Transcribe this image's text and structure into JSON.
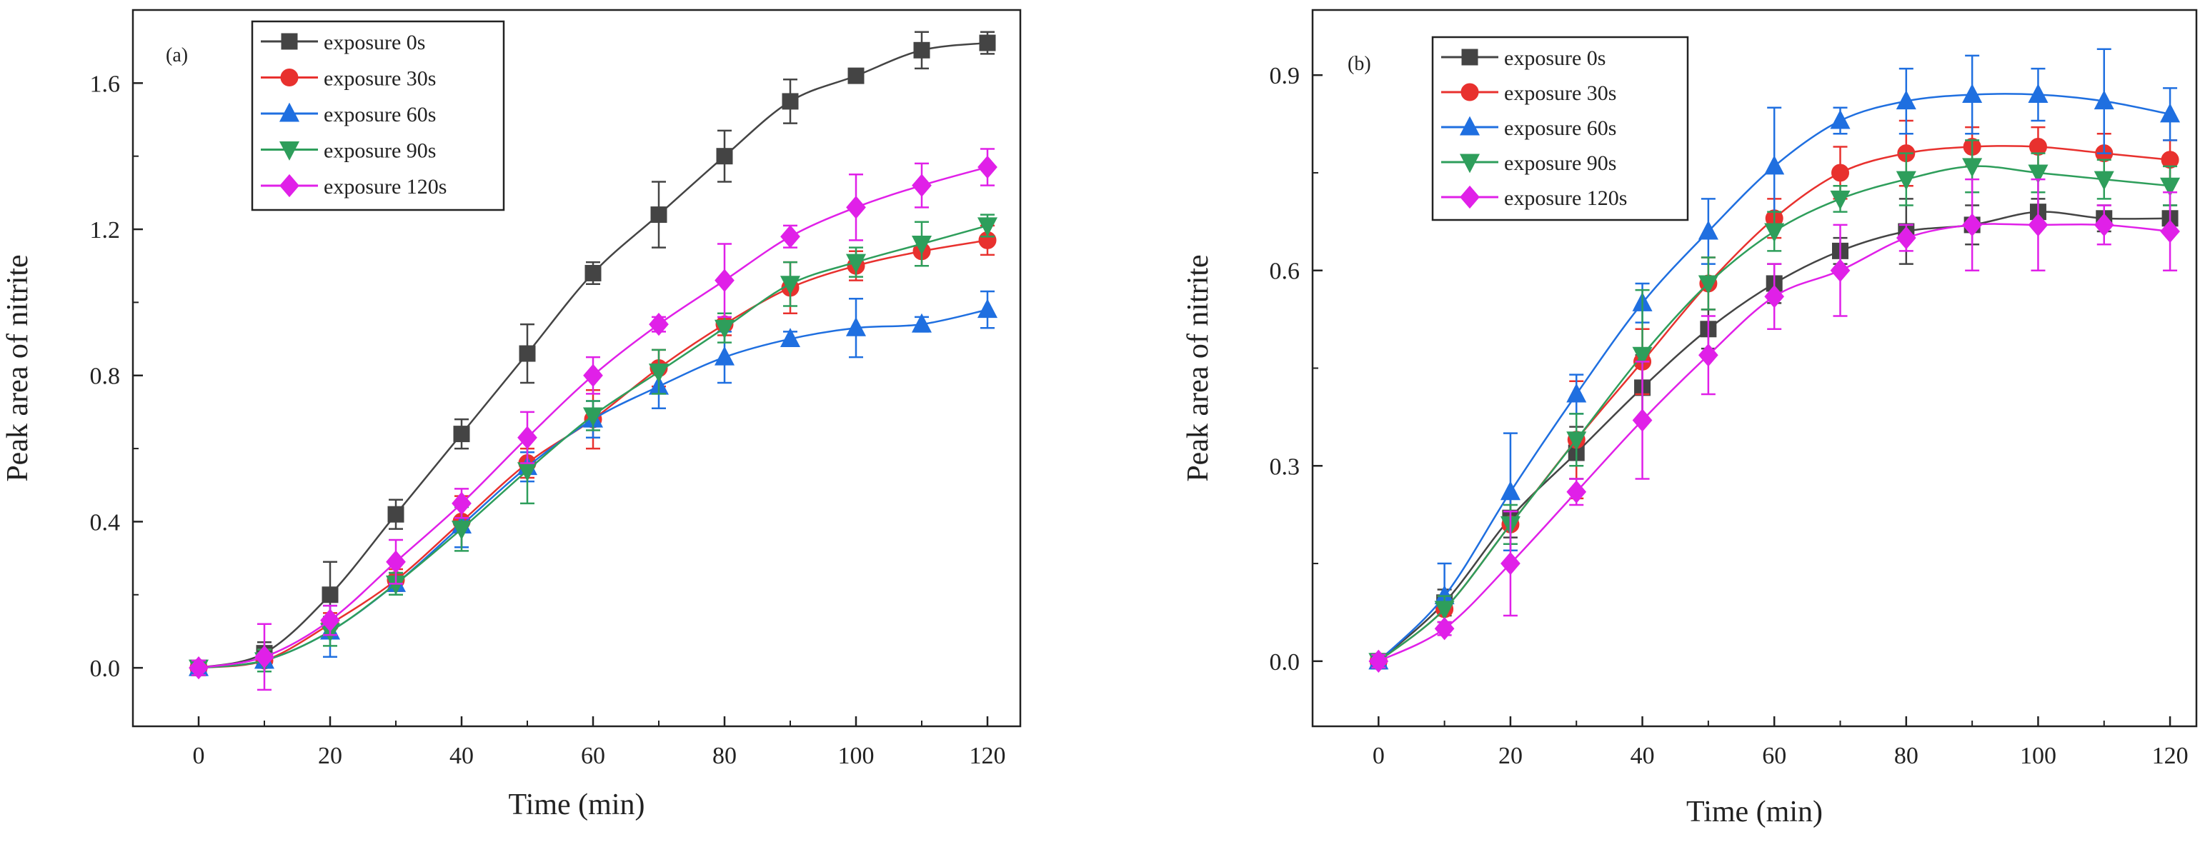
{
  "chart_data": [
    {
      "type": "line",
      "panel_label": "(a)",
      "xlabel": "Time (min)",
      "ylabel": "Peak area of nitrite",
      "xlim": [
        -10,
        125
      ],
      "ylim": [
        -0.16,
        1.8
      ],
      "x_ticks": [
        0,
        20,
        40,
        60,
        80,
        100,
        120
      ],
      "y_ticks": [
        0.0,
        0.4,
        0.8,
        1.2,
        1.6
      ],
      "x_tick_labels": [
        "0",
        "20",
        "40",
        "60",
        "80",
        "100",
        "120"
      ],
      "y_tick_labels": [
        "0.0",
        "0.4",
        "0.8",
        "1.2",
        "1.6"
      ],
      "x": [
        0,
        10,
        20,
        30,
        40,
        50,
        60,
        70,
        80,
        90,
        100,
        110,
        120
      ],
      "legend_position": "top-left",
      "series": [
        {
          "name": "exposure 0s",
          "color": "#444444",
          "marker": "square",
          "values": [
            0.0,
            0.04,
            0.2,
            0.42,
            0.64,
            0.86,
            1.08,
            1.24,
            1.4,
            1.55,
            1.62,
            1.69,
            1.71
          ],
          "errors": [
            0.02,
            0.03,
            0.09,
            0.04,
            0.04,
            0.08,
            0.03,
            0.09,
            0.07,
            0.06,
            0.01,
            0.05,
            0.03
          ]
        },
        {
          "name": "exposure 30s",
          "color": "#e8312e",
          "marker": "circle",
          "values": [
            0.0,
            0.02,
            0.12,
            0.24,
            0.4,
            0.56,
            0.68,
            0.82,
            0.94,
            1.04,
            1.1,
            1.14,
            1.17
          ],
          "errors": [
            0.02,
            0.03,
            0.03,
            0.03,
            0.07,
            0.04,
            0.08,
            0.05,
            0.03,
            0.07,
            0.04,
            0.04,
            0.04
          ]
        },
        {
          "name": "exposure 60s",
          "color": "#1f6fe0",
          "marker": "triangle-up",
          "values": [
            0.0,
            0.02,
            0.1,
            0.23,
            0.39,
            0.55,
            0.68,
            0.77,
            0.85,
            0.9,
            0.93,
            0.94,
            0.98
          ],
          "errors": [
            0.02,
            0.02,
            0.07,
            0.03,
            0.06,
            0.04,
            0.05,
            0.06,
            0.07,
            0.02,
            0.08,
            0.02,
            0.05
          ]
        },
        {
          "name": "exposure 90s",
          "color": "#2e9e5b",
          "marker": "triangle-down",
          "values": [
            0.0,
            0.02,
            0.1,
            0.23,
            0.38,
            0.54,
            0.69,
            0.81,
            0.93,
            1.05,
            1.11,
            1.16,
            1.21
          ],
          "errors": [
            0.02,
            0.03,
            0.04,
            0.03,
            0.06,
            0.09,
            0.04,
            0.06,
            0.04,
            0.06,
            0.04,
            0.06,
            0.03
          ]
        },
        {
          "name": "exposure 120s",
          "color": "#e020e8",
          "marker": "diamond",
          "values": [
            0.0,
            0.03,
            0.13,
            0.29,
            0.45,
            0.63,
            0.8,
            0.94,
            1.06,
            1.18,
            1.26,
            1.32,
            1.37
          ],
          "errors": [
            0.02,
            0.09,
            0.04,
            0.06,
            0.04,
            0.07,
            0.05,
            0.02,
            0.1,
            0.03,
            0.09,
            0.06,
            0.05
          ]
        }
      ]
    },
    {
      "type": "line",
      "panel_label": "(b)",
      "xlabel": "Time (min)",
      "ylabel": "Peak area of nitrite",
      "xlim": [
        -10,
        124
      ],
      "ylim": [
        -0.1,
        1.0
      ],
      "x_ticks": [
        0,
        20,
        40,
        60,
        80,
        100,
        120
      ],
      "y_ticks": [
        0.0,
        0.3,
        0.6,
        0.9
      ],
      "x_tick_labels": [
        "0",
        "20",
        "40",
        "60",
        "80",
        "100",
        "120"
      ],
      "y_tick_labels": [
        "0.0",
        "0.3",
        "0.6",
        "0.9"
      ],
      "x": [
        0,
        10,
        20,
        30,
        40,
        50,
        60,
        70,
        80,
        90,
        100,
        110,
        120
      ],
      "legend_position": "top-left",
      "series": [
        {
          "name": "exposure 0s",
          "color": "#444444",
          "marker": "square",
          "values": [
            0.0,
            0.09,
            0.22,
            0.32,
            0.42,
            0.51,
            0.58,
            0.63,
            0.66,
            0.67,
            0.69,
            0.68,
            0.68
          ],
          "errors": [
            0.01,
            0.02,
            0.03,
            0.04,
            0.05,
            0.03,
            0.03,
            0.02,
            0.05,
            0.03,
            0.02,
            0.02,
            0.02
          ]
        },
        {
          "name": "exposure 30s",
          "color": "#e8312e",
          "marker": "circle",
          "values": [
            0.0,
            0.08,
            0.21,
            0.34,
            0.46,
            0.58,
            0.68,
            0.75,
            0.78,
            0.79,
            0.79,
            0.78,
            0.77
          ],
          "errors": [
            0.01,
            0.02,
            0.04,
            0.09,
            0.05,
            0.04,
            0.03,
            0.04,
            0.05,
            0.03,
            0.03,
            0.03,
            0.03
          ]
        },
        {
          "name": "exposure 60s",
          "color": "#1f6fe0",
          "marker": "triangle-up",
          "values": [
            0.0,
            0.1,
            0.26,
            0.41,
            0.55,
            0.66,
            0.76,
            0.83,
            0.86,
            0.87,
            0.87,
            0.86,
            0.84
          ],
          "errors": [
            0.01,
            0.05,
            0.09,
            0.03,
            0.03,
            0.05,
            0.09,
            0.02,
            0.05,
            0.06,
            0.04,
            0.08,
            0.04
          ]
        },
        {
          "name": "exposure 90s",
          "color": "#2e9e5b",
          "marker": "triangle-down",
          "values": [
            0.0,
            0.08,
            0.21,
            0.34,
            0.47,
            0.58,
            0.66,
            0.71,
            0.74,
            0.76,
            0.75,
            0.74,
            0.73
          ],
          "errors": [
            0.01,
            0.02,
            0.03,
            0.04,
            0.1,
            0.04,
            0.03,
            0.02,
            0.04,
            0.04,
            0.03,
            0.03,
            0.03
          ]
        },
        {
          "name": "exposure 120s",
          "color": "#e020e8",
          "marker": "diamond",
          "values": [
            0.0,
            0.05,
            0.15,
            0.26,
            0.37,
            0.47,
            0.56,
            0.6,
            0.65,
            0.67,
            0.67,
            0.67,
            0.66
          ],
          "errors": [
            0.01,
            0.01,
            0.08,
            0.02,
            0.09,
            0.06,
            0.05,
            0.07,
            0.02,
            0.07,
            0.07,
            0.03,
            0.06
          ]
        }
      ]
    }
  ]
}
